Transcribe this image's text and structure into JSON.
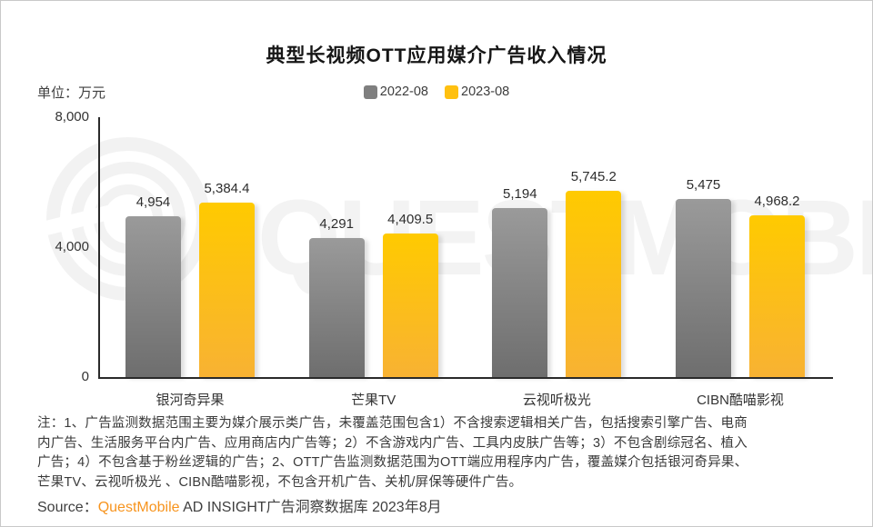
{
  "page": {
    "title": "典型长视频OTT应用媒介广告收入情况",
    "unit_label": "单位：万元",
    "watermark": "QUESTMOBILE",
    "note_lines": [
      "注：1、广告监测数据范围主要为媒介展示类广告，未覆盖范围包含1）不含搜索逻辑相关广告，包括搜索引擎广告、电商",
      "内广告、生活服务平台内广告、应用商店内广告等；2）不含游戏内广告、工具内皮肤广告等；3）不包含剧综冠名、植入",
      "广告；4）不包含基于粉丝逻辑的广告；2、OTT广告监测数据范围为OTT端应用程序内广告，覆盖媒介包括银河奇异果、",
      "芒果TV、云视听极光 、CIBN酷喵影视，不包含开机广告、关机/屏保等硬件广告。"
    ],
    "source": {
      "prefix": "Source：",
      "brand": "QuestMobile",
      "suffix": " AD INSIGHT广告洞察数据库 2023年8月",
      "brand_color": "#f7941e"
    }
  },
  "chart_data": {
    "type": "bar",
    "title": "典型长视频OTT应用媒介广告收入情况",
    "unit": "万元",
    "categories": [
      "银河奇异果",
      "芒果TV",
      "云视听极光",
      "CIBN酷喵影视"
    ],
    "series": [
      {
        "name": "2022-08",
        "legend_color": "#7f7f7f",
        "bar_color_top": "#9a9a9a",
        "bar_color_bottom": "#6e6e6e",
        "values": [
          4954,
          4291,
          5194,
          5475
        ],
        "labels": [
          "4,954",
          "4,291",
          "5,194",
          "5,475"
        ]
      },
      {
        "name": "2023-08",
        "legend_color": "#ffc010",
        "bar_color_top": "#ffca00",
        "bar_color_bottom": "#f8b233",
        "values": [
          5384.4,
          4409.5,
          5745.2,
          4968.2
        ],
        "labels": [
          "5,384.4",
          "4,409.5",
          "5,745.2",
          "4,968.2"
        ]
      }
    ],
    "ylim": [
      0,
      8000
    ],
    "yticks": [
      {
        "value": 0,
        "label": "0"
      },
      {
        "value": 4000,
        "label": "4,000"
      },
      {
        "value": 8000,
        "label": "8,000"
      }
    ],
    "legend_position": "top",
    "grid": false
  }
}
